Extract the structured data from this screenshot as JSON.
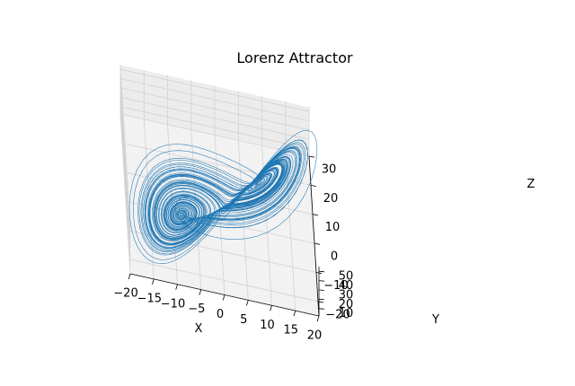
{
  "chart_data": {
    "type": "line3d",
    "title": "Lorenz Attractor",
    "xlabel": "X",
    "ylabel": "Y",
    "zlabel": "Z",
    "xlim": [
      -20,
      20
    ],
    "ylim": [
      -25,
      30
    ],
    "zlim": [
      2,
      55
    ],
    "x_ticks": [
      "−20",
      "−15",
      "−10",
      "−5",
      "0",
      "5",
      "10",
      "15",
      "20"
    ],
    "y_ticks": [
      "−20",
      "−10",
      "0",
      "10",
      "20",
      "30"
    ],
    "z_ticks": [
      "10",
      "20",
      "30",
      "40",
      "50"
    ],
    "grid": true,
    "legend": "none",
    "series": [
      {
        "system": "lorenz",
        "sigma": 10,
        "rho": 28,
        "beta": 2.667,
        "initial": [
          0,
          1,
          1.05
        ],
        "dt": 0.01,
        "steps": 10000,
        "color": "#1f77b4"
      }
    ]
  },
  "colors": {
    "line": "#1f77b4",
    "pane_back": "#ececec",
    "pane_side": "#ededed",
    "pane_floor": "#f2f2f2",
    "grid": "#d2d2d2"
  }
}
